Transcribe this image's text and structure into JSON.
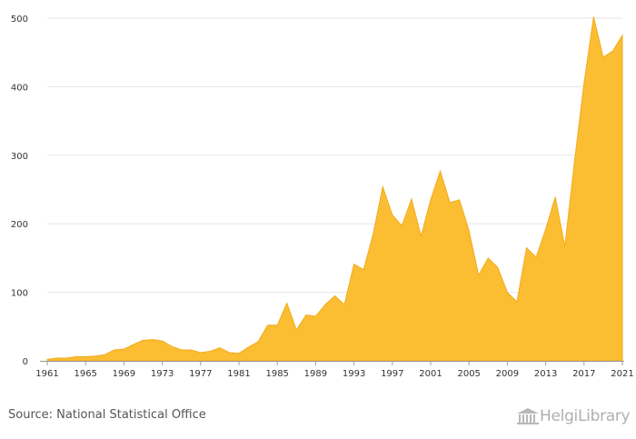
{
  "chart_data": {
    "type": "area",
    "x": [
      1961,
      1962,
      1963,
      1964,
      1965,
      1966,
      1967,
      1968,
      1969,
      1970,
      1971,
      1972,
      1973,
      1974,
      1975,
      1976,
      1977,
      1978,
      1979,
      1980,
      1981,
      1982,
      1983,
      1984,
      1985,
      1986,
      1987,
      1988,
      1989,
      1990,
      1991,
      1992,
      1993,
      1994,
      1995,
      1996,
      1997,
      1998,
      1999,
      2000,
      2001,
      2002,
      2003,
      2004,
      2005,
      2006,
      2007,
      2008,
      2009,
      2010,
      2011,
      2012,
      2013,
      2014,
      2015,
      2016,
      2017,
      2018,
      2019,
      2020,
      2021
    ],
    "values": [
      2,
      4,
      4,
      6,
      6,
      7,
      9,
      16,
      17,
      24,
      30,
      31,
      29,
      21,
      16,
      16,
      12,
      14,
      19,
      12,
      11,
      20,
      28,
      52,
      52,
      84,
      45,
      67,
      65,
      82,
      95,
      82,
      141,
      133,
      185,
      254,
      213,
      197,
      236,
      182,
      235,
      277,
      231,
      235,
      190,
      125,
      150,
      136,
      100,
      86,
      165,
      151,
      192,
      239,
      167,
      290,
      405,
      502,
      443,
      452,
      475
    ],
    "xticks": [
      "1961",
      "1965",
      "1969",
      "1973",
      "1977",
      "1981",
      "1985",
      "1989",
      "1993",
      "1997",
      "2001",
      "2005",
      "2009",
      "2013",
      "2017",
      "2021"
    ],
    "yticks": [
      "0",
      "100",
      "200",
      "300",
      "400",
      "500"
    ],
    "ylim": [
      0,
      500
    ],
    "xlim": [
      1961,
      2021
    ],
    "grid": true,
    "color": "#FBBD32",
    "stroke": "#F2AC1E"
  },
  "source": "Source: National Statistical Office",
  "logo": {
    "text": "HelgiLibrary",
    "icon": "library-building-icon",
    "color": "#b0b0b0"
  }
}
